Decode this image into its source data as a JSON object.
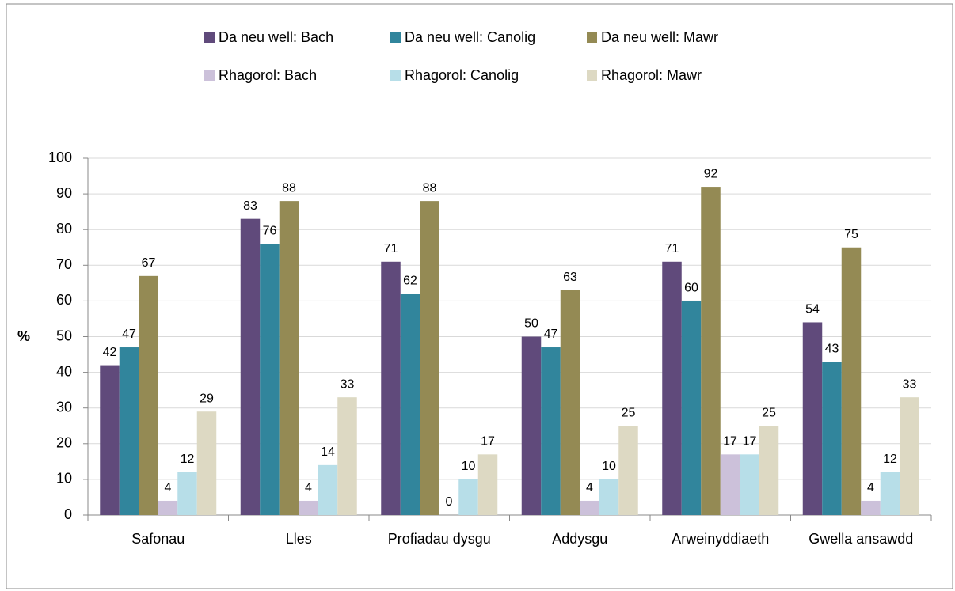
{
  "chart_data": {
    "type": "bar",
    "categories": [
      "Safonau",
      "Lles",
      "Profiadau dysgu",
      "Addysgu",
      "Arweinyddiaeth",
      "Gwella ansawdd"
    ],
    "series": [
      {
        "name": "Da neu well: Bach",
        "color": "#604a7b",
        "values": [
          42,
          83,
          71,
          50,
          71,
          54
        ]
      },
      {
        "name": "Da neu well: Canolig",
        "color": "#31859c",
        "values": [
          47,
          76,
          62,
          47,
          60,
          43
        ]
      },
      {
        "name": "Da neu well: Mawr",
        "color": "#948a54",
        "values": [
          67,
          88,
          88,
          63,
          92,
          75
        ]
      },
      {
        "name": "Rhagorol: Bach",
        "color": "#ccc1da",
        "values": [
          4,
          4,
          0,
          4,
          17,
          4
        ]
      },
      {
        "name": "Rhagorol: Canolig",
        "color": "#b7dee8",
        "values": [
          12,
          14,
          10,
          10,
          17,
          12
        ]
      },
      {
        "name": "Rhagorol: Mawr",
        "color": "#ddd9c3",
        "values": [
          29,
          33,
          17,
          25,
          25,
          33
        ]
      }
    ],
    "y_label": "%",
    "ylim": [
      0,
      100
    ],
    "yticks": [
      0,
      10,
      20,
      30,
      40,
      50,
      60,
      70,
      80,
      90,
      100
    ],
    "grid": true,
    "legend": "top"
  }
}
